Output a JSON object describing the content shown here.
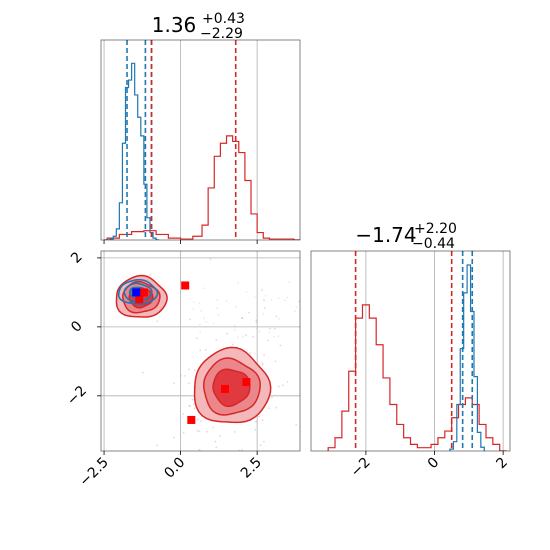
{
  "chart_data": {
    "type": "corner",
    "grid": true,
    "colors": {
      "posterior_a": "#1f77b4",
      "posterior_b": "#d62728",
      "marker_red": "#ff0000",
      "marker_blue": "#0000ff"
    },
    "param1": {
      "title_value": "1.36",
      "title_plus": "+0.43",
      "title_minus": "−2.29",
      "xlim": [
        -2.6,
        3.9
      ],
      "xticks": [
        -2.5,
        0.0,
        2.5
      ],
      "xtick_labels": [
        "−2.5",
        "0.0",
        "2.5"
      ],
      "hist_blue": {
        "x": [
          -2.45,
          -2.35,
          -2.25,
          -2.15,
          -2.05,
          -1.95,
          -1.85,
          -1.75,
          -1.65,
          -1.55,
          -1.45,
          -1.35,
          -1.25,
          -1.15,
          -1.05,
          -0.95,
          -0.85,
          -0.75
        ],
        "y": [
          0.0,
          0.0,
          0.005,
          0.02,
          0.06,
          0.2,
          0.52,
          0.82,
          0.86,
          0.95,
          0.78,
          0.66,
          0.56,
          0.3,
          0.12,
          0.04,
          0.01,
          0.0
        ]
      },
      "hist_red": {
        "x": [
          -2.2,
          -1.8,
          -1.4,
          -1.0,
          -0.6,
          -0.2,
          0.2,
          0.6,
          0.8,
          1.0,
          1.2,
          1.4,
          1.6,
          1.8,
          2.0,
          2.2,
          2.4,
          2.6,
          2.8,
          3.0,
          3.3,
          3.6,
          3.8
        ],
        "y": [
          0.01,
          0.03,
          0.045,
          0.05,
          0.03,
          0.01,
          0.005,
          0.02,
          0.08,
          0.28,
          0.45,
          0.52,
          0.56,
          0.53,
          0.47,
          0.32,
          0.14,
          0.04,
          0.01,
          0.005,
          0.005,
          0.005,
          0.0
        ]
      },
      "quantiles_blue": [
        -1.75,
        -1.15,
        -0.95
      ],
      "quantiles_red": [
        -0.95,
        1.8
      ]
    },
    "param2": {
      "title_value": "−1.74",
      "title_plus": "+2.20",
      "title_minus": "−0.44",
      "ylim": [
        -3.6,
        2.2
      ],
      "yticks": [
        -2,
        0,
        2
      ],
      "ytick_labels": [
        "−2",
        "0",
        "2"
      ],
      "xlim": [
        -3.6,
        2.2
      ],
      "xticks": [
        -2,
        0,
        2
      ],
      "xtick_labels": [
        "−2",
        "0",
        "2"
      ],
      "hist_red": {
        "x": [
          -3.0,
          -2.8,
          -2.6,
          -2.4,
          -2.2,
          -2.0,
          -1.8,
          -1.6,
          -1.4,
          -1.2,
          -1.0,
          -0.8,
          -0.6,
          -0.4,
          -0.2,
          0.0,
          0.2,
          0.4,
          0.6,
          0.8,
          1.0,
          1.2,
          1.4,
          1.6,
          1.8,
          2.0
        ],
        "y": [
          0.005,
          0.02,
          0.06,
          0.12,
          0.2,
          0.22,
          0.2,
          0.16,
          0.11,
          0.07,
          0.04,
          0.02,
          0.01,
          0.005,
          0.005,
          0.01,
          0.02,
          0.03,
          0.05,
          0.07,
          0.08,
          0.07,
          0.04,
          0.02,
          0.01,
          0.0
        ]
      },
      "hist_blue": {
        "x": [
          0.5,
          0.6,
          0.7,
          0.8,
          0.9,
          1.0,
          1.1,
          1.2,
          1.3,
          1.4
        ],
        "y": [
          0.01,
          0.05,
          0.25,
          0.55,
          0.85,
          1.0,
          0.75,
          0.4,
          0.1,
          0.02
        ]
      },
      "quantiles_blue": [
        0.82,
        1.1
      ],
      "quantiles_red": [
        -2.3,
        0.5
      ]
    },
    "scatter_2d": {
      "cluster_blue": {
        "center": [
          -1.4,
          1.0
        ],
        "sigma": [
          0.45,
          0.25
        ]
      },
      "cluster_red_upper": {
        "center": [
          -1.3,
          0.85
        ],
        "sigma": [
          0.55,
          0.4
        ]
      },
      "cluster_red_lower": {
        "center": [
          1.65,
          -1.75
        ],
        "sigma": [
          0.8,
          0.7
        ]
      },
      "red_markers": [
        [
          0.15,
          1.2
        ],
        [
          -1.35,
          0.8
        ],
        [
          -1.2,
          1.0
        ],
        [
          1.45,
          -1.8
        ],
        [
          2.15,
          -1.6
        ],
        [
          0.35,
          -2.7
        ]
      ],
      "blue_marker": [
        -1.45,
        1.0
      ]
    }
  }
}
